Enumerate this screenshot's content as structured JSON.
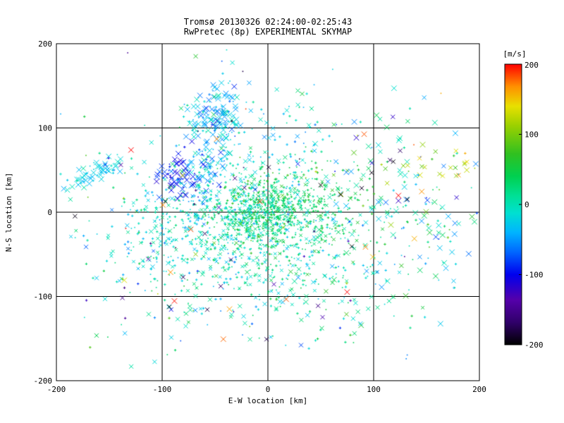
{
  "window": {
    "background": "#ffffff"
  },
  "chart_data": {
    "type": "scatter",
    "title": "Tromsø 20130326 02:24:00-02:25:43",
    "subtitle": "RwPretec (8p) EXPERIMENTAL SKYMAP",
    "title_color": "#993333",
    "xlabel": "E-W location [km]",
    "ylabel": "N-S location [km]",
    "xlim": [
      -200,
      200
    ],
    "ylim": [
      -200,
      200
    ],
    "grid_values": [
      -100,
      0,
      100
    ],
    "grid_on": true,
    "x_tick_labels": [
      "-200",
      "-100",
      "0",
      "100",
      "200"
    ],
    "y_tick_labels": [
      "200",
      "100",
      "0",
      "-100",
      "-200"
    ],
    "colorbar": {
      "label": "[m/s]",
      "label_color": "#ff8800",
      "top_tick_color": "#cc2200",
      "ticks": [
        "200",
        "100",
        "0",
        "-100",
        "-200"
      ],
      "vmin": -200,
      "vmax": 200,
      "position": "right"
    },
    "colormap": [
      {
        "t": 0.0,
        "c": "#000000"
      },
      {
        "t": 0.08,
        "c": "#30006a"
      },
      {
        "t": 0.16,
        "c": "#5500aa"
      },
      {
        "t": 0.25,
        "c": "#0000ee"
      },
      {
        "t": 0.33,
        "c": "#0066ff"
      },
      {
        "t": 0.4,
        "c": "#00b4ff"
      },
      {
        "t": 0.47,
        "c": "#00e0d0"
      },
      {
        "t": 0.53,
        "c": "#00e096"
      },
      {
        "t": 0.6,
        "c": "#00d050"
      },
      {
        "t": 0.68,
        "c": "#30c020"
      },
      {
        "t": 0.78,
        "c": "#9ad000"
      },
      {
        "t": 0.85,
        "c": "#e8e000"
      },
      {
        "t": 0.92,
        "c": "#ff9000"
      },
      {
        "t": 1.0,
        "c": "#ff0000"
      }
    ],
    "seed": 20130326,
    "clusters": [
      {
        "name": "core-left-cyan",
        "shape": "gauss",
        "cx": -50,
        "cy": -8,
        "sx": 48,
        "sy": 36,
        "n": 520,
        "v_mean": -12,
        "v_sd": 22,
        "dot": 0.75,
        "size": 3
      },
      {
        "name": "core-right-green",
        "shape": "gauss",
        "cx": 18,
        "cy": 2,
        "sx": 38,
        "sy": 30,
        "n": 480,
        "v_mean": 38,
        "v_sd": 22,
        "dot": 0.75,
        "size": 3
      },
      {
        "name": "core-center-green",
        "shape": "gauss",
        "cx": -5,
        "cy": -2,
        "sx": 20,
        "sy": 16,
        "n": 260,
        "v_mean": 20,
        "v_sd": 25,
        "dot": 0.8,
        "size": 3
      },
      {
        "name": "lower-spread",
        "shape": "gauss",
        "cx": -15,
        "cy": -62,
        "sx": 75,
        "sy": 32,
        "n": 300,
        "v_mean": 5,
        "v_sd": 28,
        "dot": 0.7,
        "size": 3
      },
      {
        "name": "upper-streak",
        "shape": "line",
        "x1": -62,
        "y1": 25,
        "x2": -40,
        "y2": 140,
        "jitter": 10,
        "n": 110,
        "v_mean": -45,
        "v_sd": 25,
        "dot": 0.35,
        "size": 5
      },
      {
        "name": "upper-cluster",
        "shape": "gauss",
        "cx": -55,
        "cy": 115,
        "sx": 14,
        "sy": 18,
        "n": 60,
        "v_mean": -35,
        "v_sd": 25,
        "dot": 0.3,
        "size": 5
      },
      {
        "name": "upper-spray",
        "shape": "gauss",
        "cx": -15,
        "cy": 85,
        "sx": 38,
        "sy": 35,
        "n": 110,
        "v_mean": -20,
        "v_sd": 25,
        "dot": 0.6,
        "size": 4
      },
      {
        "name": "blue-patch",
        "shape": "gauss",
        "cx": -82,
        "cy": 42,
        "sx": 12,
        "sy": 14,
        "n": 70,
        "v_mean": -95,
        "v_sd": 18,
        "dot": 0.3,
        "size": 5
      },
      {
        "name": "left-chain",
        "shape": "line",
        "x1": -188,
        "y1": 30,
        "x2": -138,
        "y2": 62,
        "jitter": 7,
        "n": 55,
        "v_mean": -25,
        "v_sd": 12,
        "dot": 0.2,
        "size": 5
      },
      {
        "name": "right-scatter",
        "shape": "gauss",
        "cx": 135,
        "cy": 5,
        "sx": 42,
        "sy": 62,
        "n": 130,
        "v_mean": 0,
        "v_sd": 55,
        "dot": 0.3,
        "size": 5
      },
      {
        "name": "wide-background",
        "shape": "gauss",
        "cx": -5,
        "cy": -5,
        "sx": 115,
        "sy": 78,
        "n": 240,
        "v_mean": 0,
        "v_sd": 45,
        "dot": 0.55,
        "size": 4
      },
      {
        "name": "bottom-sparse",
        "shape": "gauss",
        "cx": 0,
        "cy": -120,
        "sx": 80,
        "sy": 30,
        "n": 80,
        "v_mean": 0,
        "v_sd": 35,
        "dot": 0.5,
        "size": 4
      },
      {
        "name": "dark-sparse",
        "shape": "gauss",
        "cx": 0,
        "cy": 0,
        "sx": 120,
        "sy": 85,
        "n": 60,
        "v_mean": -165,
        "v_sd": 25,
        "dot": 0.5,
        "size": 4
      },
      {
        "name": "warm-outliers",
        "shape": "gauss",
        "cx": 20,
        "cy": 10,
        "sx": 110,
        "sy": 80,
        "n": 28,
        "v_mean": 165,
        "v_sd": 30,
        "dot": 0.2,
        "size": 5
      },
      {
        "name": "orange-right-patch",
        "shape": "gauss",
        "cx": 158,
        "cy": 55,
        "sx": 22,
        "sy": 14,
        "n": 26,
        "v_mean": 115,
        "v_sd": 35,
        "dot": 0.3,
        "size": 4
      }
    ]
  }
}
